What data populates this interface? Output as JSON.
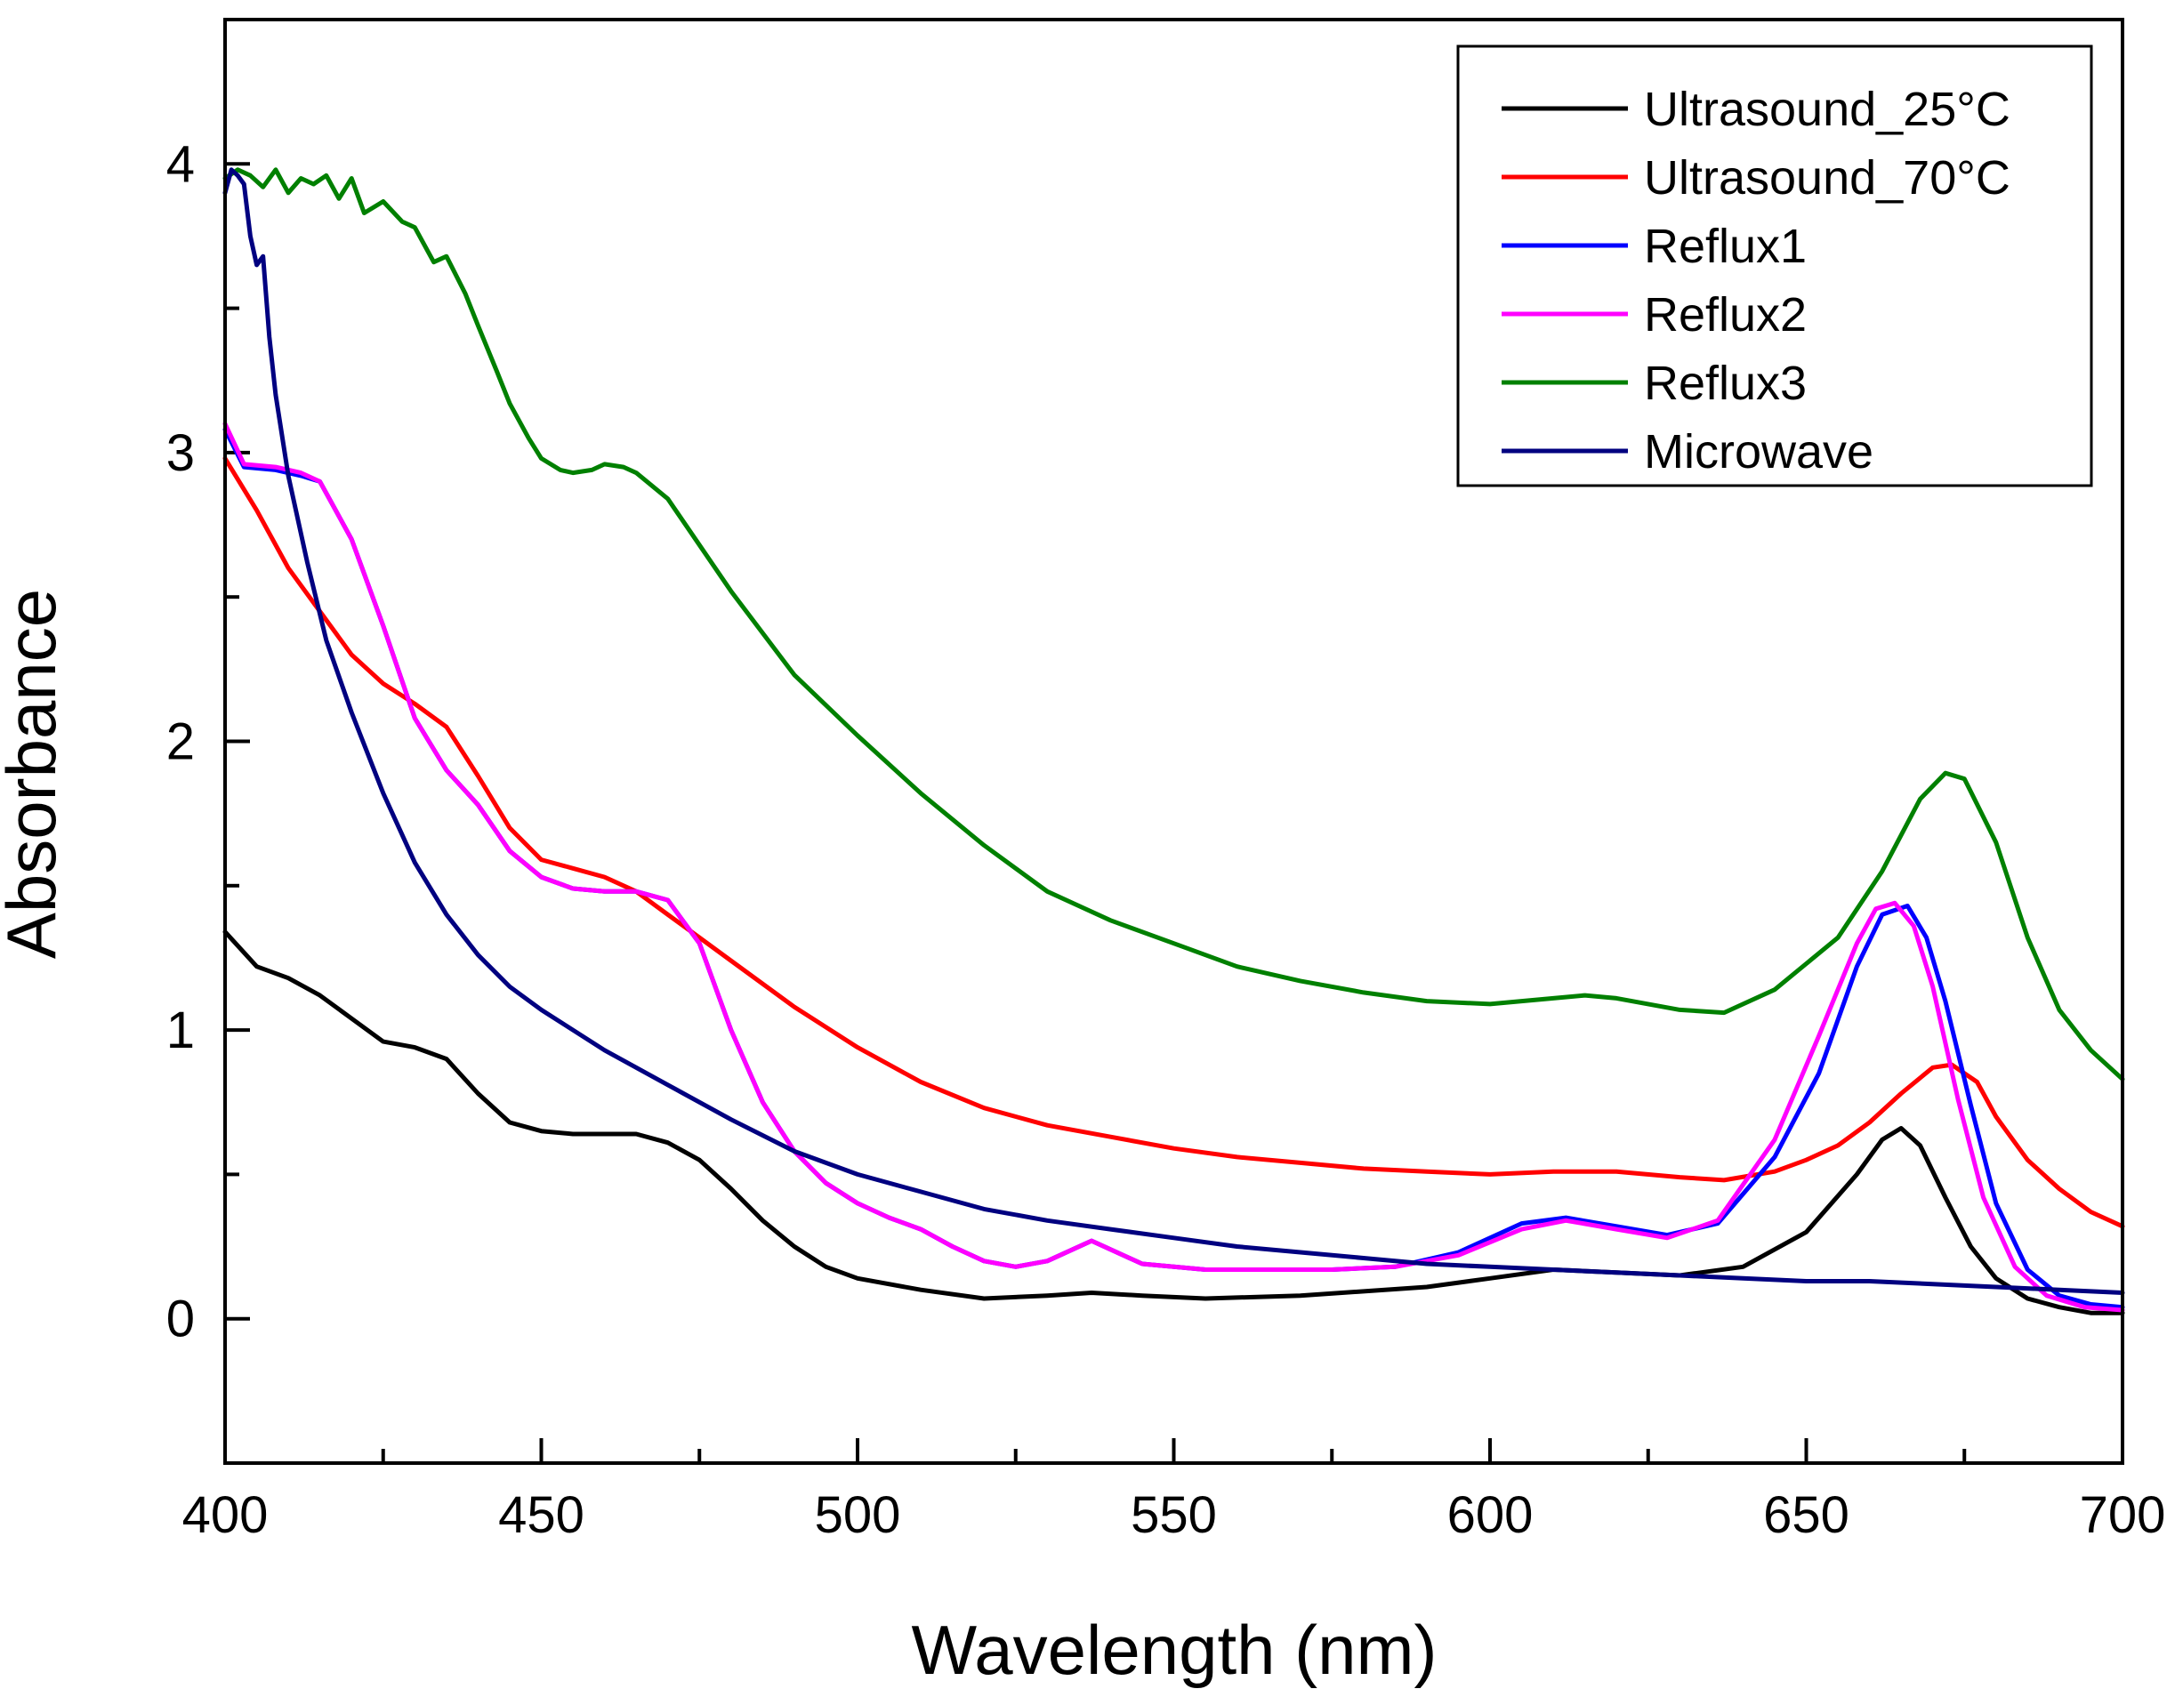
{
  "chart_data": {
    "type": "line",
    "xlabel": "Wavelength (nm)",
    "ylabel": "Absorbance",
    "xlim": [
      400,
      700
    ],
    "ylim": [
      -0.5,
      4.5
    ],
    "xticks": [
      400,
      450,
      500,
      550,
      600,
      650,
      700
    ],
    "yticks": [
      0,
      1,
      2,
      3,
      4
    ],
    "legend_position": "top-right",
    "grid": false,
    "series": [
      {
        "name": "Ultrasound_25°C",
        "color": "#000000",
        "x": [
          400,
          405,
          410,
          415,
          420,
          425,
          430,
          435,
          440,
          445,
          450,
          455,
          460,
          465,
          470,
          475,
          480,
          485,
          490,
          495,
          500,
          510,
          520,
          530,
          537,
          545,
          555,
          570,
          590,
          600,
          610,
          620,
          630,
          640,
          650,
          658,
          662,
          665,
          668,
          672,
          676,
          680,
          685,
          690,
          695,
          700
        ],
        "y": [
          1.34,
          1.22,
          1.18,
          1.12,
          1.04,
          0.96,
          0.94,
          0.9,
          0.78,
          0.68,
          0.65,
          0.64,
          0.64,
          0.64,
          0.61,
          0.55,
          0.45,
          0.34,
          0.25,
          0.18,
          0.14,
          0.1,
          0.07,
          0.08,
          0.09,
          0.08,
          0.07,
          0.08,
          0.11,
          0.14,
          0.17,
          0.16,
          0.15,
          0.18,
          0.3,
          0.5,
          0.62,
          0.66,
          0.6,
          0.42,
          0.25,
          0.14,
          0.07,
          0.04,
          0.02,
          0.02
        ]
      },
      {
        "name": "Ultrasound_70°C",
        "color": "#ff0000",
        "x": [
          400,
          405,
          410,
          415,
          420,
          425,
          430,
          435,
          440,
          445,
          450,
          455,
          460,
          465,
          470,
          475,
          480,
          490,
          500,
          510,
          520,
          530,
          540,
          550,
          560,
          570,
          580,
          590,
          600,
          610,
          620,
          630,
          637,
          645,
          650,
          655,
          660,
          665,
          670,
          673,
          677,
          680,
          685,
          690,
          695,
          700
        ],
        "y": [
          2.98,
          2.8,
          2.6,
          2.45,
          2.3,
          2.2,
          2.13,
          2.05,
          1.88,
          1.7,
          1.59,
          1.56,
          1.53,
          1.48,
          1.4,
          1.32,
          1.24,
          1.08,
          0.94,
          0.82,
          0.73,
          0.67,
          0.63,
          0.59,
          0.56,
          0.54,
          0.52,
          0.51,
          0.5,
          0.51,
          0.51,
          0.49,
          0.48,
          0.51,
          0.55,
          0.6,
          0.68,
          0.78,
          0.87,
          0.88,
          0.82,
          0.7,
          0.55,
          0.45,
          0.37,
          0.32
        ]
      },
      {
        "name": "Reflux1",
        "color": "#0000ff",
        "x": [
          400,
          403,
          408,
          412,
          415,
          420,
          425,
          430,
          435,
          440,
          445,
          450,
          455,
          460,
          465,
          470,
          475,
          480,
          485,
          490,
          495,
          500,
          505,
          510,
          515,
          520,
          525,
          530,
          537,
          545,
          555,
          565,
          575,
          585,
          595,
          605,
          612,
          620,
          628,
          636,
          645,
          652,
          658,
          662,
          666,
          669,
          672,
          676,
          680,
          685,
          690,
          695,
          700
        ],
        "y": [
          3.08,
          2.95,
          2.94,
          2.92,
          2.9,
          2.7,
          2.4,
          2.08,
          1.9,
          1.78,
          1.62,
          1.53,
          1.49,
          1.48,
          1.48,
          1.45,
          1.3,
          1.0,
          0.75,
          0.58,
          0.47,
          0.4,
          0.35,
          0.31,
          0.25,
          0.2,
          0.18,
          0.2,
          0.27,
          0.19,
          0.17,
          0.17,
          0.17,
          0.18,
          0.23,
          0.33,
          0.35,
          0.32,
          0.29,
          0.33,
          0.56,
          0.85,
          1.22,
          1.4,
          1.43,
          1.32,
          1.1,
          0.74,
          0.4,
          0.17,
          0.08,
          0.05,
          0.04
        ]
      },
      {
        "name": "Reflux2",
        "color": "#ff00ff",
        "x": [
          400,
          403,
          408,
          412,
          415,
          420,
          425,
          430,
          435,
          440,
          445,
          450,
          455,
          460,
          465,
          470,
          475,
          480,
          485,
          490,
          495,
          500,
          505,
          510,
          515,
          520,
          525,
          530,
          537,
          545,
          555,
          565,
          575,
          585,
          595,
          605,
          612,
          620,
          628,
          636,
          645,
          652,
          658,
          661,
          664,
          667,
          670,
          674,
          678,
          683,
          688,
          694,
          700
        ],
        "y": [
          3.1,
          2.96,
          2.95,
          2.93,
          2.9,
          2.7,
          2.4,
          2.08,
          1.9,
          1.78,
          1.62,
          1.53,
          1.49,
          1.48,
          1.48,
          1.45,
          1.3,
          1.0,
          0.75,
          0.58,
          0.47,
          0.4,
          0.35,
          0.31,
          0.25,
          0.2,
          0.18,
          0.2,
          0.27,
          0.19,
          0.17,
          0.17,
          0.17,
          0.18,
          0.22,
          0.31,
          0.34,
          0.31,
          0.28,
          0.34,
          0.62,
          0.98,
          1.3,
          1.42,
          1.44,
          1.36,
          1.15,
          0.76,
          0.42,
          0.18,
          0.08,
          0.04,
          0.03
        ]
      },
      {
        "name": "Reflux3",
        "color": "#008000",
        "x": [
          400,
          402,
          404,
          406,
          408,
          410,
          412,
          414,
          416,
          418,
          420,
          422,
          425,
          428,
          430,
          433,
          435,
          438,
          440,
          443,
          445,
          448,
          450,
          453,
          455,
          458,
          460,
          463,
          465,
          470,
          475,
          480,
          490,
          500,
          510,
          520,
          530,
          540,
          550,
          560,
          570,
          580,
          590,
          600,
          610,
          615,
          620,
          630,
          637,
          645,
          655,
          662,
          668,
          672,
          675,
          680,
          685,
          690,
          695,
          700
        ],
        "y": [
          3.95,
          3.98,
          3.96,
          3.92,
          3.98,
          3.9,
          3.95,
          3.93,
          3.96,
          3.88,
          3.95,
          3.83,
          3.87,
          3.8,
          3.78,
          3.66,
          3.68,
          3.55,
          3.44,
          3.28,
          3.17,
          3.05,
          2.98,
          2.94,
          2.93,
          2.94,
          2.96,
          2.95,
          2.93,
          2.84,
          2.68,
          2.52,
          2.23,
          2.02,
          1.82,
          1.64,
          1.48,
          1.38,
          1.3,
          1.22,
          1.17,
          1.13,
          1.1,
          1.09,
          1.11,
          1.12,
          1.11,
          1.07,
          1.06,
          1.14,
          1.32,
          1.55,
          1.8,
          1.89,
          1.87,
          1.65,
          1.32,
          1.07,
          0.93,
          0.83
        ]
      },
      {
        "name": "Microwave",
        "color": "#000080",
        "x": [
          400,
          401,
          402,
          403,
          404,
          405,
          406,
          407,
          408,
          410,
          413,
          416,
          420,
          425,
          430,
          435,
          440,
          445,
          450,
          460,
          470,
          480,
          490,
          500,
          510,
          520,
          530,
          540,
          550,
          560,
          570,
          580,
          590,
          600,
          610,
          620,
          630,
          640,
          650,
          660,
          670,
          680,
          690,
          700
        ],
        "y": [
          3.9,
          3.98,
          3.96,
          3.93,
          3.75,
          3.65,
          3.68,
          3.4,
          3.2,
          2.92,
          2.62,
          2.35,
          2.1,
          1.82,
          1.58,
          1.4,
          1.26,
          1.15,
          1.07,
          0.93,
          0.81,
          0.69,
          0.58,
          0.5,
          0.44,
          0.38,
          0.34,
          0.31,
          0.28,
          0.25,
          0.23,
          0.21,
          0.19,
          0.18,
          0.17,
          0.16,
          0.15,
          0.14,
          0.13,
          0.13,
          0.12,
          0.11,
          0.1,
          0.09
        ]
      }
    ]
  }
}
